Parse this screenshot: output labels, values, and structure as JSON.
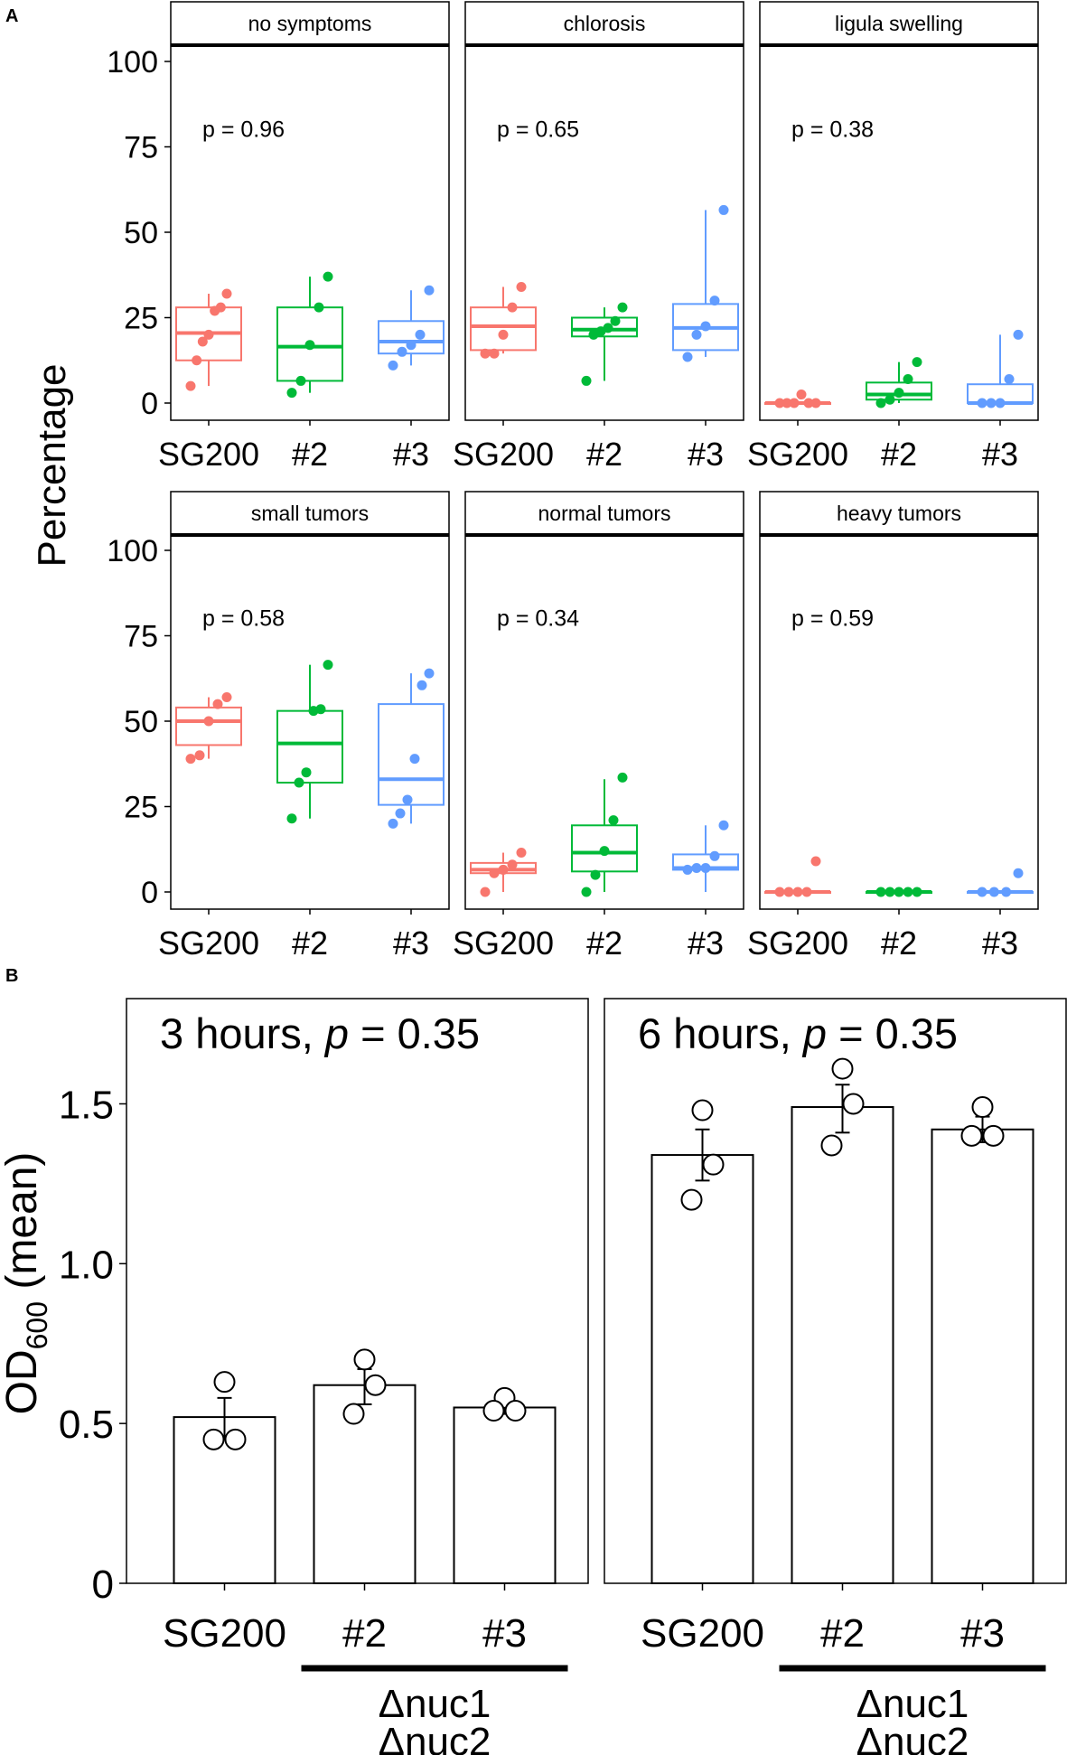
{
  "panel_labels": {
    "a": "A",
    "b": "B"
  },
  "colors": {
    "SG200": "#f8766d",
    "#2": "#00ba38",
    "#3": "#619cff"
  },
  "chart_data": [
    {
      "panel": "A",
      "type": "boxplot",
      "ylabel": "Percentage",
      "ylim": [
        0,
        100
      ],
      "yticks": [
        0,
        25,
        50,
        75,
        100
      ],
      "categories": [
        "SG200",
        "#2",
        "#3"
      ],
      "facets": [
        {
          "title": "no symptoms",
          "pvalue": "p = 0.96",
          "groups": [
            {
              "name": "SG200",
              "q1": 12.5,
              "median": 20.5,
              "q3": 28,
              "wmin": 5,
              "wmax": 32,
              "points": [
                5,
                12.5,
                18,
                20,
                27,
                28,
                32
              ]
            },
            {
              "name": "#2",
              "q1": 6.5,
              "median": 16.5,
              "q3": 28,
              "wmin": 3,
              "wmax": 37,
              "points": [
                3,
                6.5,
                17,
                28,
                37
              ]
            },
            {
              "name": "#3",
              "q1": 14.5,
              "median": 18,
              "q3": 24,
              "wmin": 11,
              "wmax": 33,
              "points": [
                11,
                15,
                17,
                20,
                33
              ]
            }
          ]
        },
        {
          "title": "chlorosis",
          "pvalue": "p = 0.65",
          "groups": [
            {
              "name": "SG200",
              "q1": 15.5,
              "median": 22.5,
              "q3": 28,
              "wmin": 14.5,
              "wmax": 34,
              "points": [
                14.5,
                14.5,
                20,
                28,
                34
              ]
            },
            {
              "name": "#2",
              "q1": 19.5,
              "median": 21.5,
              "q3": 25,
              "wmin": 6.5,
              "wmax": 28,
              "points": [
                6.5,
                20,
                21,
                22,
                24,
                28
              ]
            },
            {
              "name": "#3",
              "q1": 15.5,
              "median": 22,
              "q3": 29,
              "wmin": 13.5,
              "wmax": 56.5,
              "points": [
                13.5,
                20,
                22.5,
                30,
                56.5
              ]
            }
          ]
        },
        {
          "title": "ligula swelling",
          "pvalue": "p = 0.38",
          "groups": [
            {
              "name": "SG200",
              "q1": 0,
              "median": 0,
              "q3": 0,
              "wmin": 0,
              "wmax": 0,
              "points": [
                0,
                0,
                0,
                2.5,
                0,
                0
              ]
            },
            {
              "name": "#2",
              "q1": 1,
              "median": 2.5,
              "q3": 6,
              "wmin": 0,
              "wmax": 12,
              "points": [
                0,
                1,
                3,
                7,
                12
              ]
            },
            {
              "name": "#3",
              "q1": 0,
              "median": 0,
              "q3": 5.5,
              "wmin": 0,
              "wmax": 20,
              "points": [
                0,
                0,
                0,
                7,
                20
              ]
            }
          ]
        },
        {
          "title": "small tumors",
          "pvalue": "p = 0.58",
          "groups": [
            {
              "name": "SG200",
              "q1": 43,
              "median": 50,
              "q3": 54,
              "wmin": 39,
              "wmax": 57,
              "points": [
                39,
                40,
                50,
                55,
                57
              ]
            },
            {
              "name": "#2",
              "q1": 32,
              "median": 43.5,
              "q3": 53,
              "wmin": 21.5,
              "wmax": 66.5,
              "points": [
                21.5,
                32,
                35,
                53,
                53.5,
                66.5
              ]
            },
            {
              "name": "#3",
              "q1": 25.5,
              "median": 33,
              "q3": 55,
              "wmin": 20,
              "wmax": 64,
              "points": [
                20,
                23,
                27,
                39,
                60.5,
                64
              ]
            }
          ]
        },
        {
          "title": "normal tumors",
          "pvalue": "p = 0.34",
          "groups": [
            {
              "name": "SG200",
              "q1": 5.5,
              "median": 6.5,
              "q3": 8.5,
              "wmin": 0,
              "wmax": 11.5,
              "points": [
                0,
                5.5,
                6.5,
                8,
                11.5
              ]
            },
            {
              "name": "#2",
              "q1": 6,
              "median": 11.5,
              "q3": 19.5,
              "wmin": 0,
              "wmax": 33,
              "points": [
                0,
                5,
                12,
                21,
                33.5
              ]
            },
            {
              "name": "#3",
              "q1": 6.5,
              "median": 7,
              "q3": 11,
              "wmin": 0,
              "wmax": 19.5,
              "points": [
                6.5,
                7,
                7,
                10.5,
                19.5
              ]
            }
          ]
        },
        {
          "title": "heavy tumors",
          "pvalue": "p = 0.59",
          "groups": [
            {
              "name": "SG200",
              "q1": 0,
              "median": 0,
              "q3": 0,
              "wmin": 0,
              "wmax": 0,
              "points": [
                0,
                0,
                0,
                0,
                9
              ]
            },
            {
              "name": "#2",
              "q1": 0,
              "median": 0,
              "q3": 0,
              "wmin": 0,
              "wmax": 0,
              "points": [
                0,
                0,
                0,
                0,
                0
              ]
            },
            {
              "name": "#3",
              "q1": 0,
              "median": 0,
              "q3": 0,
              "wmin": 0,
              "wmax": 0,
              "points": [
                0,
                0,
                0,
                5.5
              ]
            }
          ]
        }
      ]
    },
    {
      "panel": "B",
      "type": "bar",
      "ylabel": "OD",
      "ylabel_sub": "600",
      "ylabel_suffix": " (mean)",
      "ylim": [
        0,
        1.9
      ],
      "yticks": [
        "0",
        "0.5",
        "1.0",
        "1.5"
      ],
      "ytick_values": [
        0,
        0.5,
        1.0,
        1.5
      ],
      "categories": [
        "SG200",
        "#2",
        "#3"
      ],
      "group_label_line1": "Δnuc1",
      "group_label_line2": "Δnuc2",
      "facets": [
        {
          "title_prefix": "3 hours, ",
          "title_p": "p",
          "title_suffix": " = 0.35",
          "bars": [
            {
              "name": "SG200",
              "mean": 0.52,
              "err_low": 0.45,
              "err_high": 0.58,
              "points": [
                0.63,
                0.45,
                0.45
              ]
            },
            {
              "name": "#2",
              "mean": 0.62,
              "err_low": 0.56,
              "err_high": 0.67,
              "points": [
                0.7,
                0.62,
                0.53
              ]
            },
            {
              "name": "#3",
              "mean": 0.55,
              "err_low": 0.53,
              "err_high": 0.57,
              "points": [
                0.58,
                0.54,
                0.54
              ]
            }
          ]
        },
        {
          "title_prefix": "6 hours, ",
          "title_p": "p",
          "title_suffix": " = 0.35",
          "bars": [
            {
              "name": "SG200",
              "mean": 1.34,
              "err_low": 1.26,
              "err_high": 1.42,
              "points": [
                1.48,
                1.31,
                1.2
              ]
            },
            {
              "name": "#2",
              "mean": 1.49,
              "err_low": 1.41,
              "err_high": 1.56,
              "points": [
                1.61,
                1.5,
                1.37
              ]
            },
            {
              "name": "#3",
              "mean": 1.42,
              "err_low": 1.38,
              "err_high": 1.46,
              "points": [
                1.49,
                1.4,
                1.4
              ]
            }
          ]
        }
      ]
    }
  ]
}
